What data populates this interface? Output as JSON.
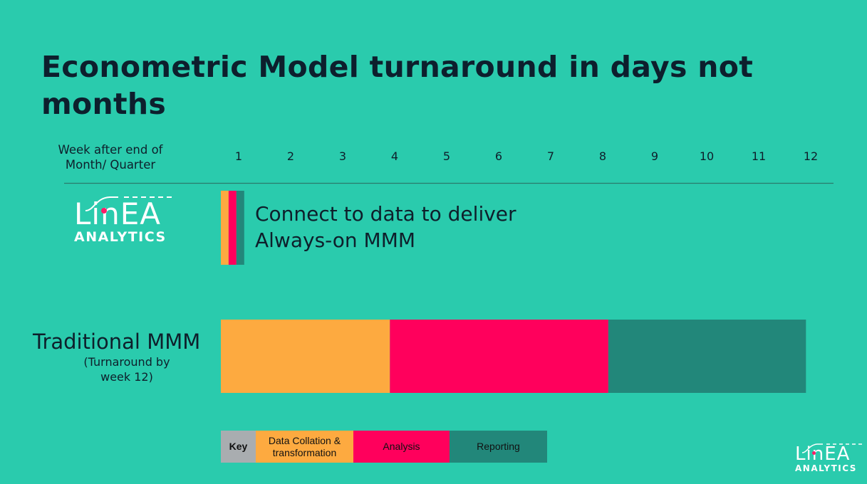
{
  "title": "Econometric Model turnaround in days not months",
  "week_label": "Week after end of Month/ Quarter",
  "colors": {
    "background": "#2ACBAD",
    "data_collation": "#FDAA40",
    "analysis": "#FF005C",
    "reporting": "#22877A",
    "key_header": "#A9ADB0"
  },
  "logo": {
    "word": "LinEA",
    "sub": "ANALYTICS"
  },
  "always_on": {
    "text": "Connect to data to deliver Always-on MMM"
  },
  "traditional": {
    "title": "Traditional MMM",
    "subtitle": "(Turnaround by week 12)"
  },
  "key": {
    "header": "Key",
    "data_collation": "Data Collation & transformation",
    "analysis": "Analysis",
    "reporting": "Reporting"
  },
  "chart_data": {
    "type": "bar",
    "orientation": "horizontal-stacked",
    "x_ticks": [
      "1",
      "2",
      "3",
      "4",
      "5",
      "6",
      "7",
      "8",
      "9",
      "10",
      "11",
      "12"
    ],
    "xlim": [
      0.5,
      12.5
    ],
    "grid": false,
    "categories": [
      "Always-on MMM",
      "Traditional MMM"
    ],
    "series": [
      {
        "name": "Data Collation & transformation",
        "values": [
          0.15,
          3.25
        ]
      },
      {
        "name": "Analysis",
        "values": [
          0.15,
          4.2
        ]
      },
      {
        "name": "Reporting",
        "values": [
          0.15,
          3.8
        ]
      }
    ]
  }
}
